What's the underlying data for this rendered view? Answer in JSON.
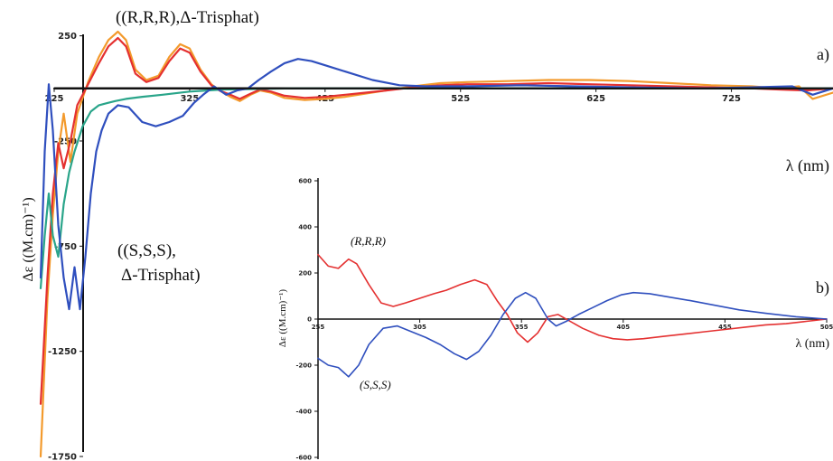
{
  "chart_data": [
    {
      "type": "line",
      "panel_label": "a)",
      "ylabel": "Δε ((M.cm)⁻¹)",
      "xlabel": "λ (nm)",
      "xlim": [
        225,
        800
      ],
      "ylim": [
        -1750,
        300
      ],
      "x_ticks": [
        "225",
        "325",
        "425",
        "525",
        "625",
        "725"
      ],
      "y_ticks": [
        "250",
        "-250",
        "-750",
        "-1250",
        "-1750"
      ],
      "annotations": [
        {
          "text": "((R,R,R),Δ-Trisphat)"
        },
        {
          "text_line1": "((S,S,S),",
          "text_line2": "Δ-Trisphat)"
        }
      ],
      "series": [
        {
          "color": "#f39a2c",
          "points": [
            [
              215,
              -1750
            ],
            [
              220,
              -1000
            ],
            [
              224,
              -600
            ],
            [
              228,
              -300
            ],
            [
              232,
              -120
            ],
            [
              237,
              -350
            ],
            [
              242,
              -120
            ],
            [
              250,
              30
            ],
            [
              258,
              150
            ],
            [
              265,
              230
            ],
            [
              272,
              270
            ],
            [
              278,
              230
            ],
            [
              285,
              90
            ],
            [
              293,
              40
            ],
            [
              302,
              60
            ],
            [
              310,
              150
            ],
            [
              318,
              210
            ],
            [
              325,
              190
            ],
            [
              333,
              90
            ],
            [
              341,
              20
            ],
            [
              347,
              -10
            ],
            [
              355,
              -40
            ],
            [
              362,
              -60
            ],
            [
              370,
              -30
            ],
            [
              377,
              -10
            ],
            [
              385,
              -20
            ],
            [
              395,
              -45
            ],
            [
              410,
              -55
            ],
            [
              425,
              -50
            ],
            [
              440,
              -40
            ],
            [
              455,
              -25
            ],
            [
              470,
              -10
            ],
            [
              490,
              10
            ],
            [
              510,
              25
            ],
            [
              530,
              30
            ],
            [
              560,
              35
            ],
            [
              590,
              40
            ],
            [
              620,
              40
            ],
            [
              650,
              35
            ],
            [
              680,
              25
            ],
            [
              710,
              15
            ],
            [
              740,
              10
            ],
            [
              760,
              0
            ],
            [
              775,
              10
            ],
            [
              785,
              -50
            ],
            [
              800,
              -20
            ]
          ]
        },
        {
          "color": "#e43030",
          "points": [
            [
              215,
              -1500
            ],
            [
              220,
              -900
            ],
            [
              224,
              -500
            ],
            [
              228,
              -260
            ],
            [
              232,
              -380
            ],
            [
              237,
              -250
            ],
            [
              242,
              -80
            ],
            [
              250,
              20
            ],
            [
              258,
              120
            ],
            [
              265,
              200
            ],
            [
              272,
              240
            ],
            [
              278,
              200
            ],
            [
              285,
              70
            ],
            [
              293,
              30
            ],
            [
              302,
              50
            ],
            [
              310,
              130
            ],
            [
              318,
              190
            ],
            [
              325,
              170
            ],
            [
              333,
              80
            ],
            [
              341,
              15
            ],
            [
              347,
              -10
            ],
            [
              355,
              -30
            ],
            [
              362,
              -50
            ],
            [
              370,
              -25
            ],
            [
              377,
              -5
            ],
            [
              385,
              -15
            ],
            [
              395,
              -35
            ],
            [
              410,
              -45
            ],
            [
              425,
              -40
            ],
            [
              440,
              -30
            ],
            [
              455,
              -20
            ],
            [
              470,
              -10
            ],
            [
              490,
              5
            ],
            [
              510,
              15
            ],
            [
              530,
              20
            ],
            [
              560,
              20
            ],
            [
              590,
              25
            ],
            [
              620,
              20
            ],
            [
              650,
              15
            ],
            [
              680,
              10
            ],
            [
              710,
              5
            ],
            [
              740,
              0
            ],
            [
              760,
              -5
            ],
            [
              780,
              -10
            ],
            [
              800,
              0
            ]
          ]
        },
        {
          "color": "#2aa58a",
          "points": [
            [
              215,
              -950
            ],
            [
              218,
              -700
            ],
            [
              221,
              -500
            ],
            [
              224,
              -700
            ],
            [
              228,
              -800
            ],
            [
              232,
              -550
            ],
            [
              236,
              -400
            ],
            [
              240,
              -300
            ],
            [
              246,
              -180
            ],
            [
              252,
              -110
            ],
            [
              258,
              -80
            ],
            [
              264,
              -70
            ],
            [
              270,
              -60
            ],
            [
              278,
              -50
            ],
            [
              290,
              -40
            ],
            [
              305,
              -30
            ],
            [
              325,
              -15
            ],
            [
              350,
              -5
            ],
            [
              400,
              0
            ],
            [
              500,
              0
            ],
            [
              600,
              0
            ],
            [
              700,
              0
            ],
            [
              800,
              0
            ]
          ]
        },
        {
          "color": "#2f4fbe",
          "points": [
            [
              215,
              -900
            ],
            [
              218,
              -300
            ],
            [
              221,
              20
            ],
            [
              224,
              -200
            ],
            [
              228,
              -650
            ],
            [
              232,
              -900
            ],
            [
              236,
              -1050
            ],
            [
              240,
              -850
            ],
            [
              244,
              -1050
            ],
            [
              248,
              -800
            ],
            [
              252,
              -500
            ],
            [
              256,
              -300
            ],
            [
              260,
              -200
            ],
            [
              265,
              -120
            ],
            [
              272,
              -80
            ],
            [
              280,
              -90
            ],
            [
              290,
              -160
            ],
            [
              300,
              -180
            ],
            [
              310,
              -160
            ],
            [
              320,
              -130
            ],
            [
              328,
              -70
            ],
            [
              335,
              -30
            ],
            [
              343,
              10
            ],
            [
              352,
              -30
            ],
            [
              360,
              -10
            ],
            [
              368,
              0
            ],
            [
              376,
              40
            ],
            [
              385,
              80
            ],
            [
              395,
              120
            ],
            [
              405,
              140
            ],
            [
              415,
              130
            ],
            [
              425,
              110
            ],
            [
              440,
              80
            ],
            [
              460,
              40
            ],
            [
              480,
              15
            ],
            [
              500,
              10
            ],
            [
              530,
              10
            ],
            [
              570,
              15
            ],
            [
              610,
              10
            ],
            [
              650,
              5
            ],
            [
              700,
              0
            ],
            [
              740,
              5
            ],
            [
              770,
              10
            ],
            [
              785,
              -30
            ],
            [
              800,
              0
            ]
          ]
        },
        {
          "color": "#111111",
          "points": [
            [
              225,
              0
            ],
            [
              800,
              0
            ]
          ]
        }
      ]
    },
    {
      "type": "line",
      "panel_label": "b)",
      "ylabel": "Δε ((M.cm)⁻¹)",
      "xlabel": "λ (nm)",
      "xlim": [
        255,
        505
      ],
      "ylim": [
        -600,
        600
      ],
      "x_ticks": [
        "255",
        "305",
        "355",
        "405",
        "455",
        "505"
      ],
      "y_ticks": [
        "600",
        "400",
        "200",
        "0",
        "-200",
        "-400",
        "-600"
      ],
      "series": [
        {
          "name": "(R,R,R)",
          "color": "#e43030",
          "points": [
            [
              255,
              280
            ],
            [
              260,
              230
            ],
            [
              265,
              220
            ],
            [
              270,
              260
            ],
            [
              274,
              240
            ],
            [
              280,
              150
            ],
            [
              286,
              70
            ],
            [
              292,
              55
            ],
            [
              298,
              70
            ],
            [
              305,
              90
            ],
            [
              312,
              110
            ],
            [
              318,
              125
            ],
            [
              325,
              150
            ],
            [
              332,
              170
            ],
            [
              338,
              150
            ],
            [
              343,
              80
            ],
            [
              348,
              20
            ],
            [
              353,
              -60
            ],
            [
              358,
              -100
            ],
            [
              363,
              -60
            ],
            [
              368,
              10
            ],
            [
              373,
              20
            ],
            [
              378,
              -5
            ],
            [
              385,
              -40
            ],
            [
              393,
              -70
            ],
            [
              400,
              -85
            ],
            [
              407,
              -90
            ],
            [
              415,
              -85
            ],
            [
              425,
              -75
            ],
            [
              435,
              -65
            ],
            [
              445,
              -55
            ],
            [
              455,
              -45
            ],
            [
              465,
              -35
            ],
            [
              475,
              -25
            ],
            [
              485,
              -20
            ],
            [
              495,
              -10
            ],
            [
              505,
              0
            ]
          ]
        },
        {
          "name": "(S,S,S)",
          "color": "#2f4fbe",
          "points": [
            [
              255,
              -170
            ],
            [
              260,
              -200
            ],
            [
              265,
              -210
            ],
            [
              270,
              -250
            ],
            [
              275,
              -200
            ],
            [
              280,
              -110
            ],
            [
              287,
              -40
            ],
            [
              294,
              -30
            ],
            [
              301,
              -55
            ],
            [
              308,
              -80
            ],
            [
              315,
              -110
            ],
            [
              322,
              -150
            ],
            [
              328,
              -175
            ],
            [
              334,
              -140
            ],
            [
              340,
              -70
            ],
            [
              346,
              20
            ],
            [
              352,
              90
            ],
            [
              357,
              115
            ],
            [
              362,
              90
            ],
            [
              368,
              0
            ],
            [
              372,
              -30
            ],
            [
              377,
              -10
            ],
            [
              383,
              20
            ],
            [
              390,
              50
            ],
            [
              397,
              80
            ],
            [
              404,
              105
            ],
            [
              410,
              115
            ],
            [
              418,
              110
            ],
            [
              428,
              95
            ],
            [
              438,
              80
            ],
            [
              450,
              60
            ],
            [
              462,
              40
            ],
            [
              475,
              25
            ],
            [
              490,
              10
            ],
            [
              505,
              0
            ]
          ]
        }
      ],
      "annotations": [
        {
          "text": "(R,R,R)"
        },
        {
          "text": "(S,S,S)"
        }
      ]
    }
  ]
}
